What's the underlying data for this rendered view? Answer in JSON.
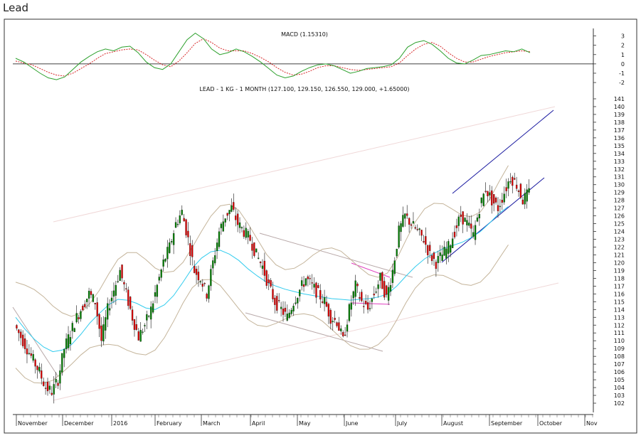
{
  "page": {
    "title": "Lead"
  },
  "chart_data": {
    "type": "candlestick",
    "macd": {
      "title": "MACD (1.15310)",
      "yticks": [
        "3",
        "2",
        "1",
        "0",
        "-1",
        "-2"
      ],
      "ylim": [
        -2.3,
        3.5
      ],
      "colors": {
        "macd": "#2ca02c",
        "signal": "#d62728",
        "zero": "#000000"
      },
      "macd_values": [
        0.6,
        0.2,
        -0.4,
        -1.0,
        -1.5,
        -1.7,
        -1.4,
        -0.6,
        0.2,
        0.8,
        1.3,
        1.6,
        1.4,
        1.8,
        1.9,
        1.2,
        0.2,
        -0.4,
        -0.6,
        0.0,
        1.3,
        2.6,
        3.3,
        2.7,
        1.6,
        1.0,
        1.2,
        1.6,
        1.3,
        0.8,
        0.2,
        -0.5,
        -1.2,
        -1.5,
        -1.3,
        -0.8,
        -0.4,
        -0.1,
        0.0,
        -0.2,
        -0.6,
        -1.0,
        -0.8,
        -0.5,
        -0.4,
        -0.3,
        -0.1,
        0.6,
        1.8,
        2.3,
        2.5,
        2.1,
        1.4,
        0.6,
        0.1,
        0.0,
        0.4,
        0.9,
        1.0,
        1.2,
        1.4,
        1.3,
        1.6,
        1.2
      ],
      "signal_values": [
        0.3,
        0.1,
        -0.1,
        -0.5,
        -0.9,
        -1.2,
        -1.3,
        -1.0,
        -0.5,
        0.0,
        0.6,
        1.1,
        1.3,
        1.5,
        1.6,
        1.5,
        1.0,
        0.4,
        -0.1,
        -0.3,
        0.3,
        1.2,
        2.2,
        2.7,
        2.3,
        1.7,
        1.4,
        1.4,
        1.4,
        1.1,
        0.7,
        0.2,
        -0.4,
        -0.9,
        -1.2,
        -1.1,
        -0.8,
        -0.4,
        -0.2,
        -0.2,
        -0.4,
        -0.6,
        -0.7,
        -0.6,
        -0.5,
        -0.4,
        -0.3,
        0.1,
        0.9,
        1.6,
        2.1,
        2.3,
        1.9,
        1.2,
        0.6,
        0.2,
        0.2,
        0.5,
        0.8,
        1.0,
        1.2,
        1.3,
        1.4,
        1.3
      ]
    },
    "price": {
      "title": "LEAD - 1 KG - 1 MONTH (127.100, 129.150, 126.550, 129.000, +1.65000)",
      "ylim": [
        101,
        142
      ],
      "yticks": [
        "141",
        "140",
        "139",
        "138",
        "137",
        "136",
        "135",
        "134",
        "133",
        "132",
        "131",
        "130",
        "129",
        "128",
        "127",
        "126",
        "125",
        "124",
        "123",
        "122",
        "121",
        "120",
        "119",
        "118",
        "117",
        "116",
        "115",
        "114",
        "113",
        "112",
        "111",
        "110",
        "109",
        "108",
        "107",
        "106",
        "105",
        "104",
        "103",
        "102"
      ],
      "colors": {
        "up": "#008000",
        "down": "#e00000",
        "moving_average": "#33ccee",
        "bollinger": "#c4b49a",
        "channel": "#1a1aa0",
        "triangle": "#e040c0",
        "long_channel": "#f0d8d8",
        "trendline": "#b8a8a8"
      },
      "closes": [
        112,
        110.5,
        109,
        107.5,
        106,
        104,
        103.5,
        105,
        109,
        111,
        113,
        114.5,
        116,
        115,
        110,
        114,
        116.5,
        119,
        116,
        113,
        110.5,
        112,
        114,
        117,
        120,
        122,
        125,
        126.5,
        123,
        119,
        118,
        116,
        120,
        124,
        126,
        127,
        125,
        124,
        123,
        121,
        119.5,
        117,
        115,
        114,
        113,
        115,
        116.5,
        118,
        117,
        116,
        115,
        113,
        112.5,
        110,
        114,
        117,
        115,
        114,
        116,
        118,
        115.5,
        119,
        124,
        126,
        125,
        124,
        123,
        121,
        120,
        121,
        122,
        124,
        126,
        125,
        123.5,
        127,
        129.5,
        128,
        127,
        129,
        131,
        130,
        128,
        129
      ],
      "ma_values": [
        113,
        111.5,
        110.2,
        109.2,
        108.6,
        108.8,
        109.5,
        110.8,
        112.3,
        113.5,
        114.6,
        115.3,
        115.2,
        114.8,
        114.2,
        114,
        114.6,
        115.8,
        117.5,
        119.3,
        120.6,
        121.4,
        121.6,
        121.1,
        120.3,
        119.2,
        118.3,
        117.5,
        117,
        116.6,
        116.3,
        116,
        115.8,
        115.6,
        115.4,
        115.3,
        115.2,
        115.3,
        115.4,
        115.6,
        116,
        117,
        118.3,
        119.5,
        120.5,
        121.2,
        121.8,
        122.2,
        122.6,
        123.2,
        124,
        125.1,
        126.3,
        127.2
      ],
      "ma_dates": [
        0,
        1.5,
        3,
        4.5,
        6,
        7.5,
        9,
        10.5,
        12,
        13.5,
        15,
        16.5,
        18,
        19.5,
        21,
        22.5,
        24,
        25.5,
        27,
        28.5,
        30,
        31.5,
        33,
        34.5,
        36,
        37.5,
        39,
        40.5,
        42,
        43.5,
        45,
        46.5,
        48,
        49.5,
        51,
        52.5,
        54,
        55.5,
        57,
        58.5,
        60,
        61.5,
        63,
        64.5,
        66,
        67.5,
        69,
        70.5,
        72,
        73.5,
        75,
        76.5,
        78,
        79.5
      ]
    },
    "x_labels": [
      "November",
      "December",
      "2016",
      "February",
      "March",
      "April",
      "May",
      "June",
      "July",
      "August",
      "September",
      "October",
      "Nov"
    ]
  }
}
